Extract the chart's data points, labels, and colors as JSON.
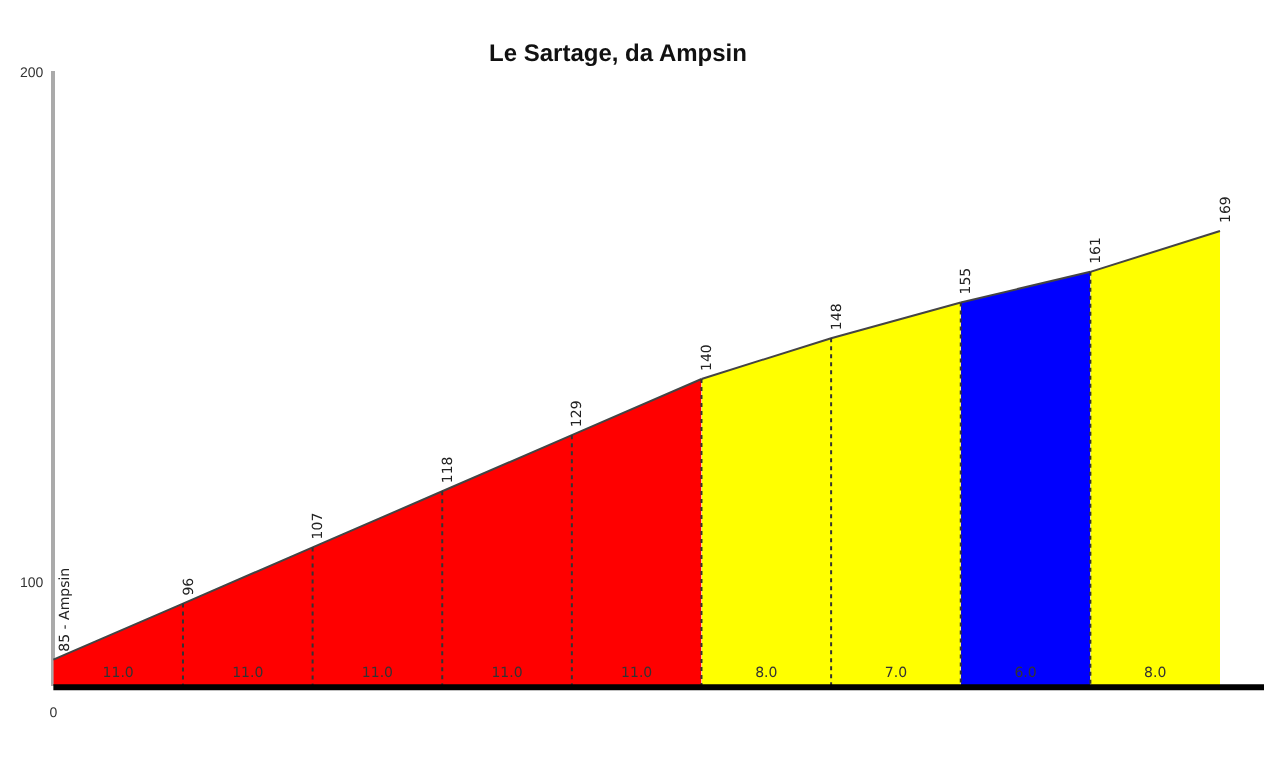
{
  "chart_data": {
    "type": "area",
    "title": "Le Sartage, da Ampsin",
    "categories": [
      "0",
      null,
      null,
      null,
      null,
      null,
      null,
      null,
      null,
      null
    ],
    "series": [
      {
        "color": "#ff0000",
        "values": [
          85,
          96,
          107,
          118,
          129,
          140,
          null,
          null,
          null,
          null
        ],
        "value_labels": [
          "85 - Ampsin",
          "96",
          "107",
          "118",
          "129",
          "140",
          null,
          null,
          null,
          null
        ]
      },
      {
        "color": "#ffff00",
        "values": [
          null,
          null,
          null,
          null,
          null,
          140,
          148,
          155,
          null,
          null
        ],
        "value_labels": [
          null,
          null,
          null,
          null,
          null,
          null,
          "148",
          "155",
          null,
          null
        ]
      },
      {
        "color": "#0000ff",
        "values": [
          null,
          null,
          null,
          null,
          null,
          null,
          null,
          155,
          161,
          null
        ],
        "value_labels": [
          null,
          null,
          null,
          null,
          null,
          null,
          null,
          null,
          "161",
          null
        ]
      },
      {
        "color": "#ffff00",
        "values": [
          null,
          null,
          null,
          null,
          null,
          null,
          null,
          null,
          161,
          169
        ],
        "value_labels": [
          null,
          null,
          null,
          null,
          null,
          null,
          null,
          null,
          null,
          "169"
        ]
      }
    ],
    "annotations": [
      "11.0",
      "11.0",
      "11.0",
      "11.0",
      "11.0",
      "8.0",
      "7.0",
      "6.0",
      "8.0"
    ],
    "ylim": [
      80,
      200
    ],
    "yticks": [
      100,
      200
    ],
    "grid": false,
    "legend": false
  }
}
